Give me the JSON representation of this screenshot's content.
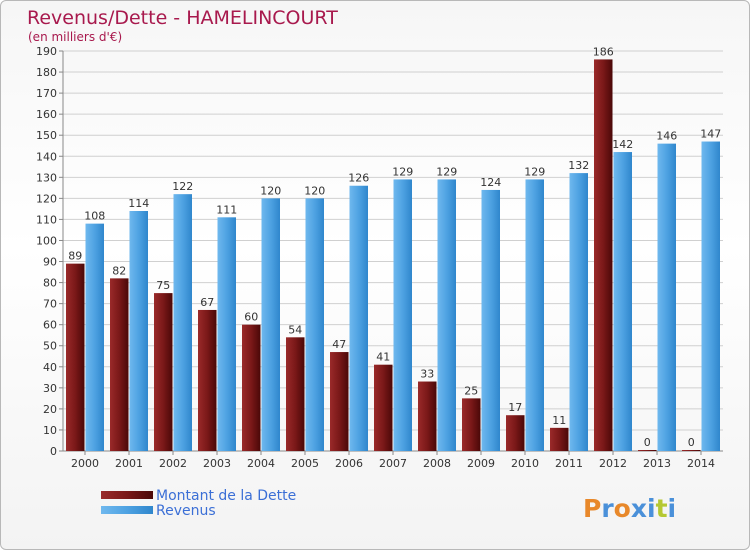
{
  "chart_data": {
    "type": "bar",
    "title": "Revenus/Dette - HAMELINCOURT",
    "subtitle": "(en milliers d'€)",
    "categories": [
      "2000",
      "2001",
      "2002",
      "2003",
      "2004",
      "2005",
      "2006",
      "2007",
      "2008",
      "2009",
      "2010",
      "2011",
      "2012",
      "2013",
      "2014"
    ],
    "series": [
      {
        "name": "Montant de la Dette",
        "color": "#7a1a1a",
        "values": [
          89,
          82,
          75,
          67,
          60,
          54,
          47,
          41,
          33,
          25,
          17,
          11,
          186,
          0,
          0
        ]
      },
      {
        "name": "Revenus",
        "color": "#4c9fe0",
        "values": [
          108,
          114,
          122,
          111,
          120,
          120,
          126,
          129,
          129,
          124,
          129,
          132,
          142,
          146,
          147
        ]
      }
    ],
    "ylim": [
      0,
      190
    ],
    "yticks": [
      0,
      10,
      20,
      30,
      40,
      50,
      60,
      70,
      80,
      90,
      100,
      110,
      120,
      130,
      140,
      150,
      160,
      170,
      180,
      190
    ],
    "grid": true,
    "legend_position": "bottom-left"
  },
  "logo": {
    "text": "Proxiti",
    "colors": [
      "#e8882a",
      "#4a90d9",
      "#e8882a",
      "#4a90d9",
      "#4a90d9",
      "#b5c832",
      "#4a90d9"
    ]
  }
}
